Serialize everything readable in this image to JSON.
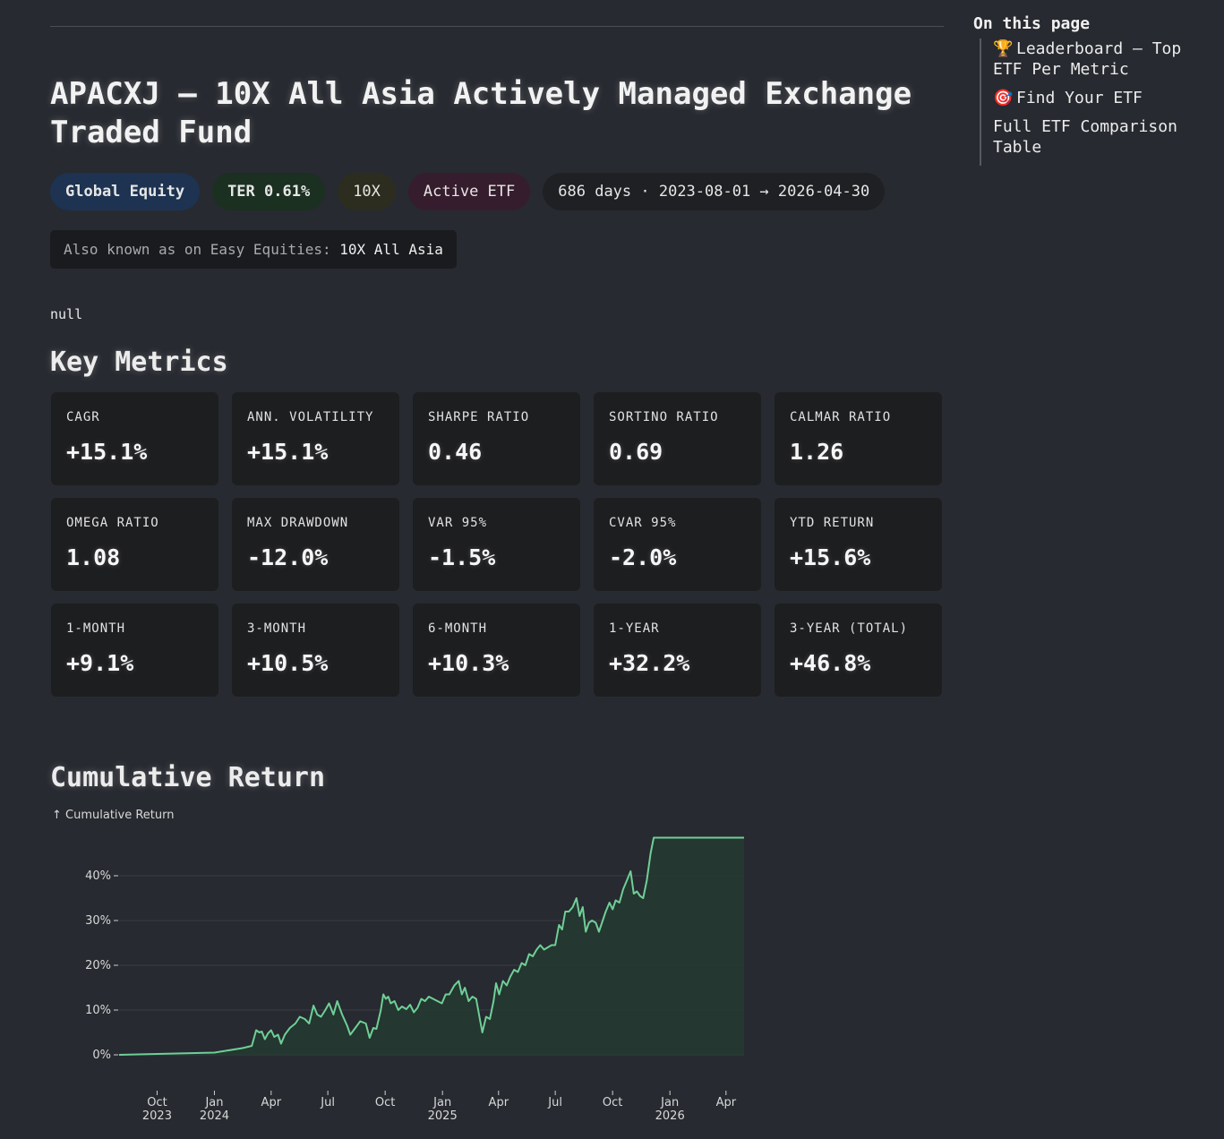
{
  "page": {
    "title": "APACXJ — 10X All Asia Actively Managed Exchange Traded Fund",
    "badges": {
      "category": "Global Equity",
      "ter": "TER 0.61%",
      "issuer": "10X",
      "type": "Active ETF",
      "period": "686 days · 2023-08-01 → 2026-04-30"
    },
    "aka": {
      "label": "Also known as on Easy Equities:",
      "value": "10X All Asia"
    },
    "note": "null"
  },
  "toc": {
    "title": "On this page",
    "items": [
      {
        "icon": "trophy-icon",
        "glyph": "🏆",
        "label": "Leaderboard — Top ETF Per Metric"
      },
      {
        "icon": "target-icon",
        "glyph": "🎯",
        "label": "Find Your ETF"
      },
      {
        "icon": "",
        "glyph": "",
        "label": "Full ETF Comparison Table"
      }
    ]
  },
  "key_metrics": {
    "heading": "Key Metrics",
    "cards": [
      {
        "label": "CAGR",
        "value": "+15.1%"
      },
      {
        "label": "ANN. VOLATILITY",
        "value": "+15.1%"
      },
      {
        "label": "SHARPE RATIO",
        "value": "0.46"
      },
      {
        "label": "SORTINO RATIO",
        "value": "0.69"
      },
      {
        "label": "CALMAR RATIO",
        "value": "1.26"
      },
      {
        "label": "OMEGA RATIO",
        "value": "1.08"
      },
      {
        "label": "MAX DRAWDOWN",
        "value": "-12.0%"
      },
      {
        "label": "VAR 95%",
        "value": "-1.5%"
      },
      {
        "label": "CVAR 95%",
        "value": "-2.0%"
      },
      {
        "label": "YTD RETURN",
        "value": "+15.6%"
      },
      {
        "label": "1-MONTH",
        "value": "+9.1%"
      },
      {
        "label": "3-MONTH",
        "value": "+10.5%"
      },
      {
        "label": "6-MONTH",
        "value": "+10.3%"
      },
      {
        "label": "1-YEAR",
        "value": "+32.2%"
      },
      {
        "label": "3-YEAR (TOTAL)",
        "value": "+46.8%"
      }
    ]
  },
  "cumulative": {
    "heading": "Cumulative Return"
  },
  "colors": {
    "positive": "#6fcf97",
    "negative": "#e06c6c",
    "area": "#243a30"
  },
  "chart_data": {
    "type": "area",
    "ylabel": "↑ Cumulative Return",
    "ylim": [
      -8,
      50
    ],
    "yticks": [
      0,
      10,
      20,
      30,
      40
    ],
    "ytick_labels": [
      "0%",
      "10%",
      "20%",
      "30%",
      "40%"
    ],
    "xlim": [
      "2023-08-01",
      "2026-04-30"
    ],
    "xticks": [
      {
        "date": "2023-10-01",
        "label": "Oct",
        "label2": "2023"
      },
      {
        "date": "2024-01-01",
        "label": "Jan",
        "label2": "2024"
      },
      {
        "date": "2024-04-01",
        "label": "Apr",
        "label2": ""
      },
      {
        "date": "2024-07-01",
        "label": "Jul",
        "label2": ""
      },
      {
        "date": "2024-10-01",
        "label": "Oct",
        "label2": ""
      },
      {
        "date": "2025-01-01",
        "label": "Jan",
        "label2": "2025"
      },
      {
        "date": "2025-04-01",
        "label": "Apr",
        "label2": ""
      },
      {
        "date": "2025-07-01",
        "label": "Jul",
        "label2": ""
      },
      {
        "date": "2025-10-01",
        "label": "Oct",
        "label2": ""
      },
      {
        "date": "2026-01-01",
        "label": "Jan",
        "label2": "2026"
      },
      {
        "date": "2026-04-01",
        "label": "Apr",
        "label2": ""
      }
    ],
    "series": [
      {
        "values": [
          [
            "2023-08-01",
            0.0
          ],
          [
            "2024-01-01",
            0.5
          ],
          [
            "2024-02-15",
            1.5
          ],
          [
            "2024-03-01",
            2.0
          ],
          [
            "2024-03-08",
            5.5
          ],
          [
            "2024-03-13",
            5.0
          ],
          [
            "2024-03-17",
            5.2
          ],
          [
            "2024-03-22",
            3.5
          ],
          [
            "2024-03-27",
            4.8
          ],
          [
            "2024-04-01",
            5.5
          ],
          [
            "2024-04-06",
            4.0
          ],
          [
            "2024-04-12",
            4.5
          ],
          [
            "2024-04-17",
            2.5
          ],
          [
            "2024-04-23",
            4.5
          ],
          [
            "2024-05-01",
            6.0
          ],
          [
            "2024-05-10",
            7.0
          ],
          [
            "2024-05-17",
            8.5
          ],
          [
            "2024-05-25",
            8.0
          ],
          [
            "2024-06-01",
            7.0
          ],
          [
            "2024-06-08",
            11.0
          ],
          [
            "2024-06-14",
            9.0
          ],
          [
            "2024-06-20",
            8.5
          ],
          [
            "2024-06-27",
            10.0
          ],
          [
            "2024-07-03",
            11.5
          ],
          [
            "2024-07-10",
            9.0
          ],
          [
            "2024-07-16",
            12.0
          ],
          [
            "2024-07-24",
            9.0
          ],
          [
            "2024-08-01",
            6.5
          ],
          [
            "2024-08-06",
            4.5
          ],
          [
            "2024-08-14",
            6.0
          ],
          [
            "2024-08-22",
            7.5
          ],
          [
            "2024-08-31",
            7.0
          ],
          [
            "2024-09-06",
            3.8
          ],
          [
            "2024-09-12",
            6.0
          ],
          [
            "2024-09-17",
            5.8
          ],
          [
            "2024-09-24",
            10.0
          ],
          [
            "2024-09-28",
            13.5
          ],
          [
            "2024-10-02",
            12.5
          ],
          [
            "2024-10-06",
            13.0
          ],
          [
            "2024-10-10",
            11.5
          ],
          [
            "2024-10-16",
            12.0
          ],
          [
            "2024-10-22",
            10.0
          ],
          [
            "2024-10-28",
            10.8
          ],
          [
            "2024-11-04",
            10.2
          ],
          [
            "2024-11-10",
            11.2
          ],
          [
            "2024-11-16",
            9.5
          ],
          [
            "2024-11-22",
            10.5
          ],
          [
            "2024-11-28",
            12.5
          ],
          [
            "2024-12-04",
            12.0
          ],
          [
            "2024-12-10",
            13.0
          ],
          [
            "2024-12-17",
            12.5
          ],
          [
            "2024-12-24",
            12.0
          ],
          [
            "2024-12-31",
            11.5
          ],
          [
            "2025-01-06",
            13.5
          ],
          [
            "2025-01-12",
            13.5
          ],
          [
            "2025-01-20",
            15.5
          ],
          [
            "2025-01-27",
            16.5
          ],
          [
            "2025-02-01",
            13.5
          ],
          [
            "2025-02-06",
            15.0
          ],
          [
            "2025-02-12",
            12.0
          ],
          [
            "2025-02-18",
            13.0
          ],
          [
            "2025-02-24",
            12.5
          ],
          [
            "2025-03-02",
            8.0
          ],
          [
            "2025-03-06",
            5.0
          ],
          [
            "2025-03-12",
            8.5
          ],
          [
            "2025-03-18",
            8.0
          ],
          [
            "2025-03-24",
            12.0
          ],
          [
            "2025-03-28",
            16.0
          ],
          [
            "2025-04-02",
            13.5
          ],
          [
            "2025-04-08",
            16.5
          ],
          [
            "2025-04-14",
            15.5
          ],
          [
            "2025-04-20",
            17.5
          ],
          [
            "2025-04-26",
            19.0
          ],
          [
            "2025-05-02",
            18.5
          ],
          [
            "2025-05-08",
            20.5
          ],
          [
            "2025-05-14",
            20.0
          ],
          [
            "2025-05-20",
            22.5
          ],
          [
            "2025-05-26",
            22.0
          ],
          [
            "2025-06-01",
            23.5
          ],
          [
            "2025-06-07",
            24.5
          ],
          [
            "2025-06-13",
            23.5
          ],
          [
            "2025-06-19",
            24.0
          ],
          [
            "2025-06-25",
            24.5
          ],
          [
            "2025-07-01",
            24.5
          ],
          [
            "2025-07-07",
            29.0
          ],
          [
            "2025-07-12",
            28.0
          ],
          [
            "2025-07-17",
            32.0
          ],
          [
            "2025-07-23",
            32.0
          ],
          [
            "2025-07-29",
            33.0
          ],
          [
            "2025-08-04",
            35.0
          ],
          [
            "2025-08-09",
            31.0
          ],
          [
            "2025-08-14",
            33.0
          ],
          [
            "2025-08-19",
            27.5
          ],
          [
            "2025-08-24",
            29.5
          ],
          [
            "2025-08-29",
            30.0
          ],
          [
            "2025-09-04",
            29.5
          ],
          [
            "2025-09-09",
            27.5
          ],
          [
            "2025-09-14",
            29.5
          ],
          [
            "2025-09-20",
            32.0
          ],
          [
            "2025-09-26",
            34.0
          ],
          [
            "2025-10-01",
            32.5
          ],
          [
            "2025-10-06",
            34.5
          ],
          [
            "2025-10-12",
            34.0
          ],
          [
            "2025-10-18",
            37.0
          ],
          [
            "2025-10-24",
            39.0
          ],
          [
            "2025-10-30",
            41.0
          ],
          [
            "2025-11-04",
            36.0
          ],
          [
            "2025-11-09",
            36.5
          ],
          [
            "2025-11-14",
            35.5
          ],
          [
            "2025-11-19",
            35.0
          ],
          [
            "2025-11-25",
            39.0
          ],
          [
            "2025-12-01",
            45.0
          ],
          [
            "2025-12-06",
            48.5
          ],
          [
            "2026-04-30",
            48.5
          ]
        ]
      }
    ]
  }
}
